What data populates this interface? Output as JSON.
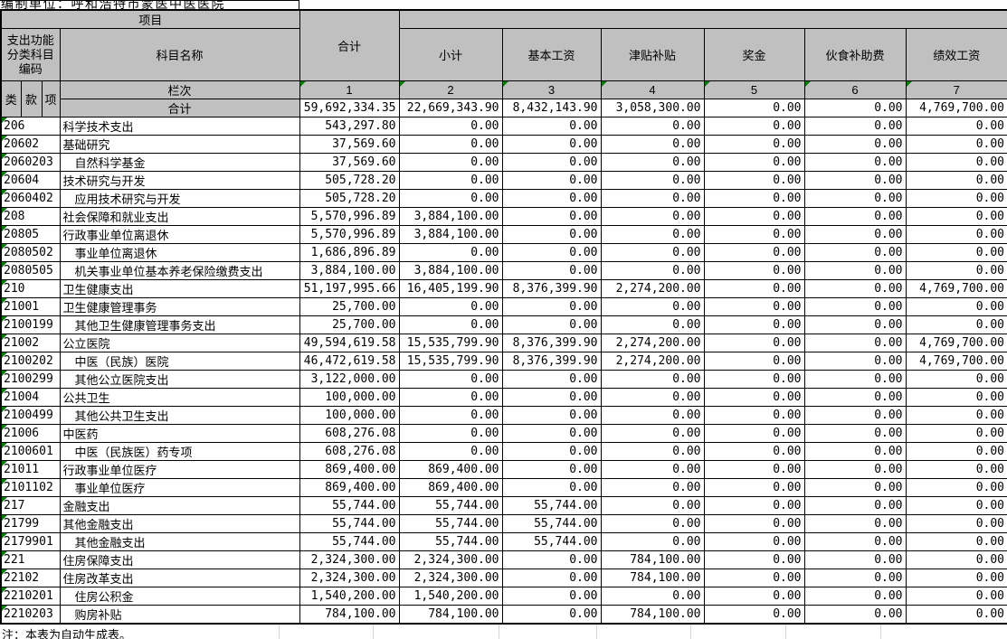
{
  "title": "编制单位：呼和浩特市蒙医中医医院",
  "header": {
    "project": "项目",
    "code_label": "支出功能分类科目编码",
    "subject_name": "科目名称",
    "total": "合计",
    "lei": "类",
    "kuan": "款",
    "xiang": "项",
    "lanci": "栏次",
    "cols": [
      "小计",
      "基本工资",
      "津贴补贴",
      "奖金",
      "伙食补助费",
      "绩效工资"
    ],
    "column_numbers": [
      "1",
      "2",
      "3",
      "4",
      "5",
      "6",
      "7"
    ]
  },
  "total_row": {
    "label": "合计",
    "values": [
      "59,692,334.35",
      "22,669,343.90",
      "8,432,143.90",
      "3,058,300.00",
      "0.00",
      "0.00",
      "4,769,700.00"
    ]
  },
  "rows": [
    {
      "code": "206",
      "name": "科学技术支出",
      "indent": false,
      "values": [
        "543,297.80",
        "0.00",
        "0.00",
        "0.00",
        "0.00",
        "0.00",
        "0.00"
      ]
    },
    {
      "code": "20602",
      "name": "基础研究",
      "indent": false,
      "values": [
        "37,569.60",
        "0.00",
        "0.00",
        "0.00",
        "0.00",
        "0.00",
        "0.00"
      ]
    },
    {
      "code": "2060203",
      "name": "自然科学基金",
      "indent": true,
      "values": [
        "37,569.60",
        "0.00",
        "0.00",
        "0.00",
        "0.00",
        "0.00",
        "0.00"
      ]
    },
    {
      "code": "20604",
      "name": "技术研究与开发",
      "indent": false,
      "values": [
        "505,728.20",
        "0.00",
        "0.00",
        "0.00",
        "0.00",
        "0.00",
        "0.00"
      ]
    },
    {
      "code": "2060402",
      "name": "应用技术研究与开发",
      "indent": true,
      "values": [
        "505,728.20",
        "0.00",
        "0.00",
        "0.00",
        "0.00",
        "0.00",
        "0.00"
      ]
    },
    {
      "code": "208",
      "name": "社会保障和就业支出",
      "indent": false,
      "values": [
        "5,570,996.89",
        "3,884,100.00",
        "0.00",
        "0.00",
        "0.00",
        "0.00",
        "0.00"
      ]
    },
    {
      "code": "20805",
      "name": "行政事业单位离退休",
      "indent": false,
      "values": [
        "5,570,996.89",
        "3,884,100.00",
        "0.00",
        "0.00",
        "0.00",
        "0.00",
        "0.00"
      ]
    },
    {
      "code": "2080502",
      "name": "事业单位离退休",
      "indent": true,
      "values": [
        "1,686,896.89",
        "0.00",
        "0.00",
        "0.00",
        "0.00",
        "0.00",
        "0.00"
      ]
    },
    {
      "code": "2080505",
      "name": "机关事业单位基本养老保险缴费支出",
      "indent": true,
      "values": [
        "3,884,100.00",
        "3,884,100.00",
        "0.00",
        "0.00",
        "0.00",
        "0.00",
        "0.00"
      ]
    },
    {
      "code": "210",
      "name": "卫生健康支出",
      "indent": false,
      "values": [
        "51,197,995.66",
        "16,405,199.90",
        "8,376,399.90",
        "2,274,200.00",
        "0.00",
        "0.00",
        "4,769,700.00"
      ]
    },
    {
      "code": "21001",
      "name": "卫生健康管理事务",
      "indent": false,
      "values": [
        "25,700.00",
        "0.00",
        "0.00",
        "0.00",
        "0.00",
        "0.00",
        "0.00"
      ]
    },
    {
      "code": "2100199",
      "name": "其他卫生健康管理事务支出",
      "indent": true,
      "values": [
        "25,700.00",
        "0.00",
        "0.00",
        "0.00",
        "0.00",
        "0.00",
        "0.00"
      ]
    },
    {
      "code": "21002",
      "name": "公立医院",
      "indent": false,
      "values": [
        "49,594,619.58",
        "15,535,799.90",
        "8,376,399.90",
        "2,274,200.00",
        "0.00",
        "0.00",
        "4,769,700.00"
      ]
    },
    {
      "code": "2100202",
      "name": "中医（民族）医院",
      "indent": true,
      "values": [
        "46,472,619.58",
        "15,535,799.90",
        "8,376,399.90",
        "2,274,200.00",
        "0.00",
        "0.00",
        "4,769,700.00"
      ]
    },
    {
      "code": "2100299",
      "name": "其他公立医院支出",
      "indent": true,
      "values": [
        "3,122,000.00",
        "0.00",
        "0.00",
        "0.00",
        "0.00",
        "0.00",
        "0.00"
      ]
    },
    {
      "code": "21004",
      "name": "公共卫生",
      "indent": false,
      "values": [
        "100,000.00",
        "0.00",
        "0.00",
        "0.00",
        "0.00",
        "0.00",
        "0.00"
      ]
    },
    {
      "code": "2100499",
      "name": "其他公共卫生支出",
      "indent": true,
      "values": [
        "100,000.00",
        "0.00",
        "0.00",
        "0.00",
        "0.00",
        "0.00",
        "0.00"
      ]
    },
    {
      "code": "21006",
      "name": "中医药",
      "indent": false,
      "values": [
        "608,276.08",
        "0.00",
        "0.00",
        "0.00",
        "0.00",
        "0.00",
        "0.00"
      ]
    },
    {
      "code": "2100601",
      "name": "中医（民族医）药专项",
      "indent": true,
      "values": [
        "608,276.08",
        "0.00",
        "0.00",
        "0.00",
        "0.00",
        "0.00",
        "0.00"
      ]
    },
    {
      "code": "21011",
      "name": "行政事业单位医疗",
      "indent": false,
      "values": [
        "869,400.00",
        "869,400.00",
        "0.00",
        "0.00",
        "0.00",
        "0.00",
        "0.00"
      ]
    },
    {
      "code": "2101102",
      "name": "事业单位医疗",
      "indent": true,
      "values": [
        "869,400.00",
        "869,400.00",
        "0.00",
        "0.00",
        "0.00",
        "0.00",
        "0.00"
      ]
    },
    {
      "code": "217",
      "name": "金融支出",
      "indent": false,
      "values": [
        "55,744.00",
        "55,744.00",
        "55,744.00",
        "0.00",
        "0.00",
        "0.00",
        "0.00"
      ]
    },
    {
      "code": "21799",
      "name": "其他金融支出",
      "indent": false,
      "values": [
        "55,744.00",
        "55,744.00",
        "55,744.00",
        "0.00",
        "0.00",
        "0.00",
        "0.00"
      ]
    },
    {
      "code": "2179901",
      "name": "其他金融支出",
      "indent": true,
      "values": [
        "55,744.00",
        "55,744.00",
        "55,744.00",
        "0.00",
        "0.00",
        "0.00",
        "0.00"
      ]
    },
    {
      "code": "221",
      "name": "住房保障支出",
      "indent": false,
      "values": [
        "2,324,300.00",
        "2,324,300.00",
        "0.00",
        "784,100.00",
        "0.00",
        "0.00",
        "0.00"
      ]
    },
    {
      "code": "22102",
      "name": "住房改革支出",
      "indent": false,
      "values": [
        "2,324,300.00",
        "2,324,300.00",
        "0.00",
        "784,100.00",
        "0.00",
        "0.00",
        "0.00"
      ]
    },
    {
      "code": "2210201",
      "name": "住房公积金",
      "indent": true,
      "values": [
        "1,540,200.00",
        "1,540,200.00",
        "0.00",
        "0.00",
        "0.00",
        "0.00",
        "0.00"
      ]
    },
    {
      "code": "2210203",
      "name": "购房补贴",
      "indent": true,
      "values": [
        "784,100.00",
        "784,100.00",
        "0.00",
        "784,100.00",
        "0.00",
        "0.00",
        "0.00"
      ]
    }
  ],
  "note": "注：本表为自动生成表。",
  "colors": {
    "header_bg": "#c0c0c0",
    "grid_border": "#000000",
    "error_indicator_green": "#008000",
    "faint_gridline": "#d4d4d4"
  }
}
